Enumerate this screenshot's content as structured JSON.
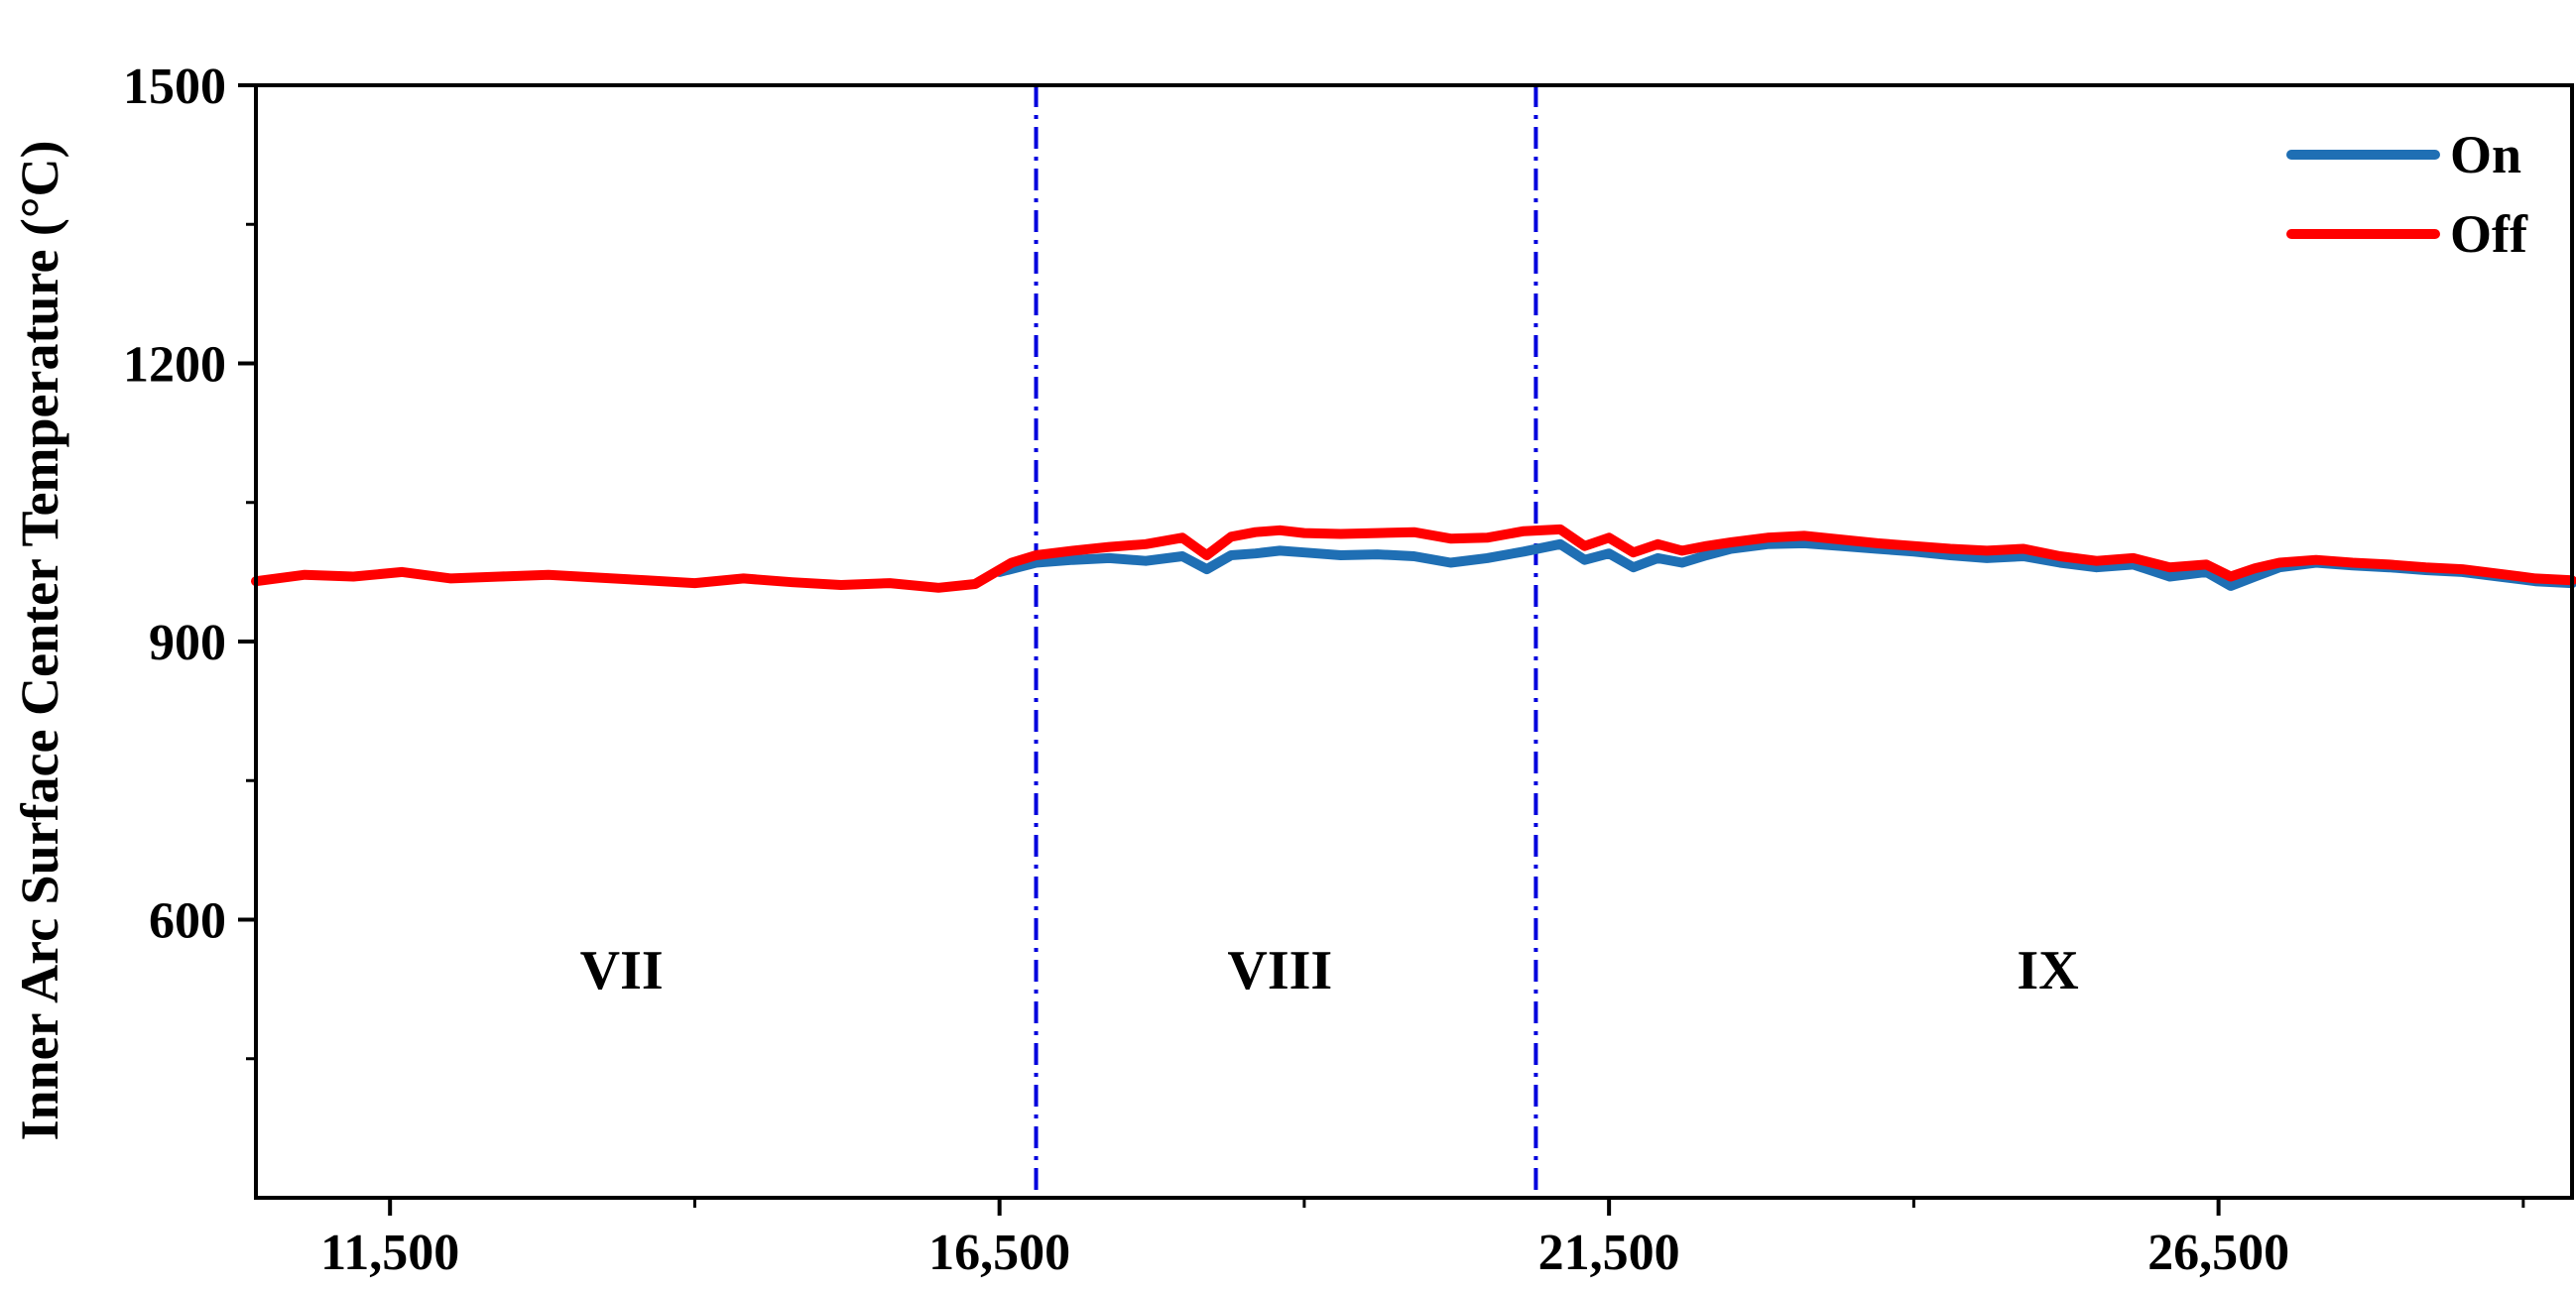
{
  "chart_data": {
    "type": "line",
    "title": "",
    "xlabel": "",
    "ylabel": "Inner Arc Surface Center Temperature (°C)",
    "xlim": [
      10400,
      29400
    ],
    "ylim": [
      300,
      1500
    ],
    "xticks": [
      11500,
      16500,
      21500,
      26500
    ],
    "xtick_labels": [
      "11,500",
      "16,500",
      "21,500",
      "26,500"
    ],
    "yticks": [
      600,
      900,
      1200,
      1500
    ],
    "ytick_labels": [
      "600",
      "900",
      "1200",
      "1500"
    ],
    "grid": false,
    "legend_position": "top-right",
    "boundaries": [
      16800,
      20900
    ],
    "boundary_color": "#0000dd",
    "regions": [
      {
        "label": "VII",
        "x": 13400,
        "y": 545
      },
      {
        "label": "VIII",
        "x": 18800,
        "y": 545
      },
      {
        "label": "IX",
        "x": 25100,
        "y": 545
      }
    ],
    "series": [
      {
        "name": "On",
        "color": "#1f6fb4",
        "x": [
          16500,
          16800,
          17100,
          17400,
          17700,
          18000,
          18200,
          18400,
          18600,
          18800,
          19000,
          19300,
          19600,
          19900,
          20200,
          20500,
          20800,
          21100,
          21300,
          21500,
          21700,
          21900,
          22100,
          22300,
          22500,
          22800,
          23100,
          23400,
          23700,
          24000,
          24300,
          24600,
          24900,
          25200,
          25500,
          25800,
          26100,
          26400,
          26600,
          26800,
          27000,
          27300,
          27600,
          27900,
          28200,
          28500,
          28800,
          29100,
          29400
        ],
        "values": [
          975,
          985,
          988,
          990,
          987,
          992,
          978,
          993,
          995,
          998,
          996,
          993,
          994,
          992,
          985,
          990,
          997,
          1005,
          988,
          995,
          980,
          990,
          985,
          993,
          1000,
          1005,
          1006,
          1003,
          1000,
          997,
          993,
          990,
          992,
          985,
          980,
          983,
          970,
          975,
          960,
          970,
          980,
          985,
          982,
          980,
          977,
          975,
          970,
          965,
          963
        ]
      },
      {
        "name": "Off",
        "color": "#ff0000",
        "x": [
          10400,
          10800,
          11200,
          11600,
          12000,
          12400,
          12800,
          13200,
          13600,
          14000,
          14400,
          14800,
          15200,
          15600,
          16000,
          16300,
          16600,
          16800,
          17100,
          17400,
          17700,
          18000,
          18200,
          18400,
          18600,
          18800,
          19000,
          19300,
          19600,
          19900,
          20200,
          20500,
          20800,
          21100,
          21300,
          21500,
          21700,
          21900,
          22100,
          22300,
          22500,
          22800,
          23100,
          23400,
          23700,
          24000,
          24300,
          24600,
          24900,
          25200,
          25500,
          25800,
          26100,
          26400,
          26600,
          26800,
          27000,
          27300,
          27600,
          27900,
          28200,
          28500,
          28800,
          29100,
          29400
        ],
        "values": [
          965,
          972,
          970,
          975,
          968,
          970,
          972,
          969,
          966,
          963,
          968,
          964,
          961,
          963,
          958,
          962,
          985,
          993,
          998,
          1002,
          1005,
          1012,
          993,
          1013,
          1018,
          1020,
          1017,
          1016,
          1017,
          1018,
          1011,
          1012,
          1019,
          1021,
          1003,
          1012,
          996,
          1005,
          998,
          1003,
          1007,
          1012,
          1014,
          1010,
          1006,
          1003,
          1000,
          998,
          1000,
          992,
          987,
          990,
          980,
          983,
          970,
          979,
          985,
          988,
          985,
          983,
          980,
          978,
          973,
          968,
          966
        ]
      }
    ]
  }
}
